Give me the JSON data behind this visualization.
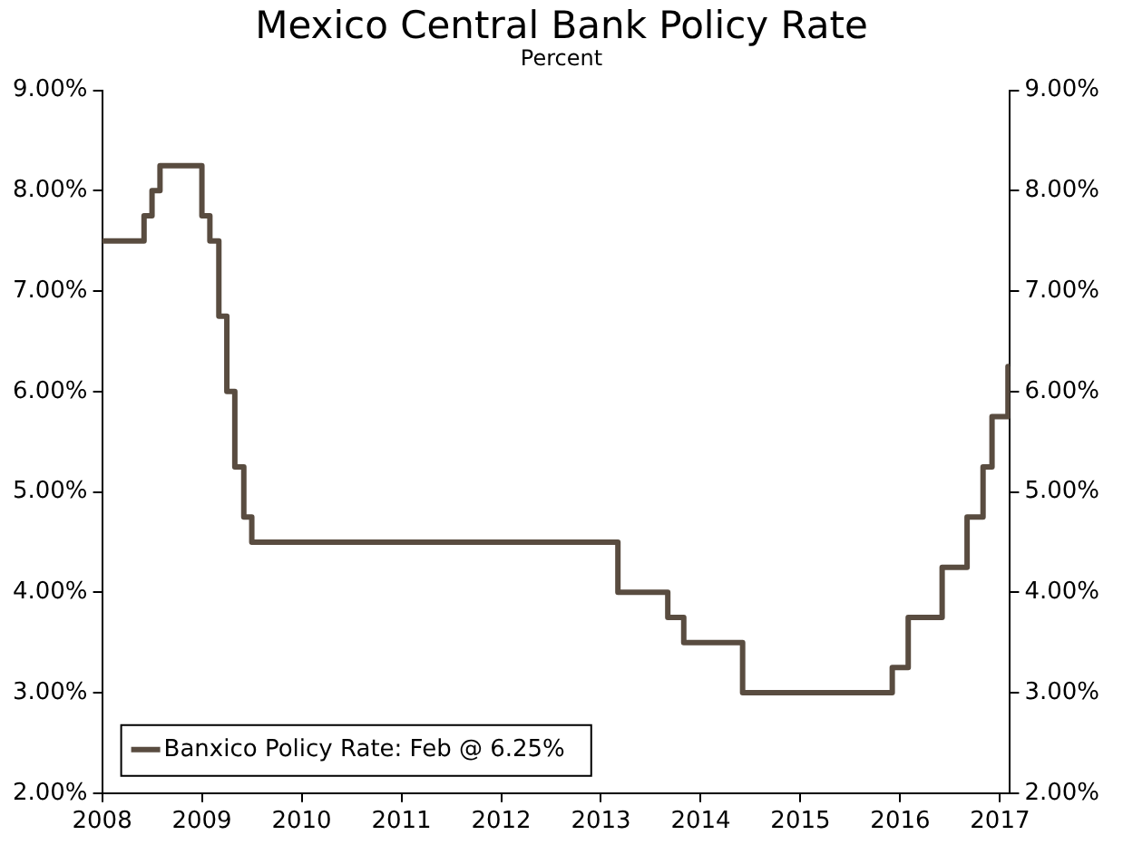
{
  "chart_data": {
    "type": "step",
    "title": "Mexico Central Bank Policy Rate",
    "subtitle": "Percent",
    "series": [
      {
        "name": "Banxico Policy Rate: Feb @ 6.25%",
        "color": "#594c40",
        "x": [
          2008.0,
          2008.42,
          2008.5,
          2008.58,
          2009.0,
          2009.08,
          2009.17,
          2009.25,
          2009.33,
          2009.42,
          2009.5,
          2013.17,
          2013.67,
          2013.83,
          2014.42,
          2015.92,
          2016.08,
          2016.42,
          2016.67,
          2016.83,
          2016.92,
          2017.08,
          2017.1
        ],
        "values": [
          7.5,
          7.75,
          8.0,
          8.25,
          7.75,
          7.5,
          6.75,
          6.0,
          5.25,
          4.75,
          4.5,
          4.0,
          3.75,
          3.5,
          3.0,
          3.25,
          3.75,
          4.25,
          4.75,
          5.25,
          5.75,
          6.25,
          6.25
        ]
      }
    ],
    "xlim": [
      2008,
      2017.1
    ],
    "xticks": [
      2008,
      2009,
      2010,
      2011,
      2012,
      2013,
      2014,
      2015,
      2016,
      2017
    ],
    "ylim": [
      2,
      9
    ],
    "yticks": [
      {
        "value": 2,
        "label": "2.00%"
      },
      {
        "value": 3,
        "label": "3.00%"
      },
      {
        "value": 4,
        "label": "4.00%"
      },
      {
        "value": 5,
        "label": "5.00%"
      },
      {
        "value": 6,
        "label": "6.00%"
      },
      {
        "value": 7,
        "label": "7.00%"
      },
      {
        "value": 8,
        "label": "8.00%"
      },
      {
        "value": 9,
        "label": "9.00%"
      }
    ],
    "y2lim": [
      2,
      9
    ],
    "y2ticks": [
      {
        "value": 2,
        "label": "2.00%"
      },
      {
        "value": 3,
        "label": "3.00%"
      },
      {
        "value": 4,
        "label": "4.00%"
      },
      {
        "value": 5,
        "label": "5.00%"
      },
      {
        "value": 6,
        "label": "6.00%"
      },
      {
        "value": 7,
        "label": "7.00%"
      },
      {
        "value": 8,
        "label": "8.00%"
      },
      {
        "value": 9,
        "label": "9.00%"
      }
    ],
    "grid": false,
    "legend": "bottom left",
    "marker": "none",
    "line_style": "solid"
  }
}
